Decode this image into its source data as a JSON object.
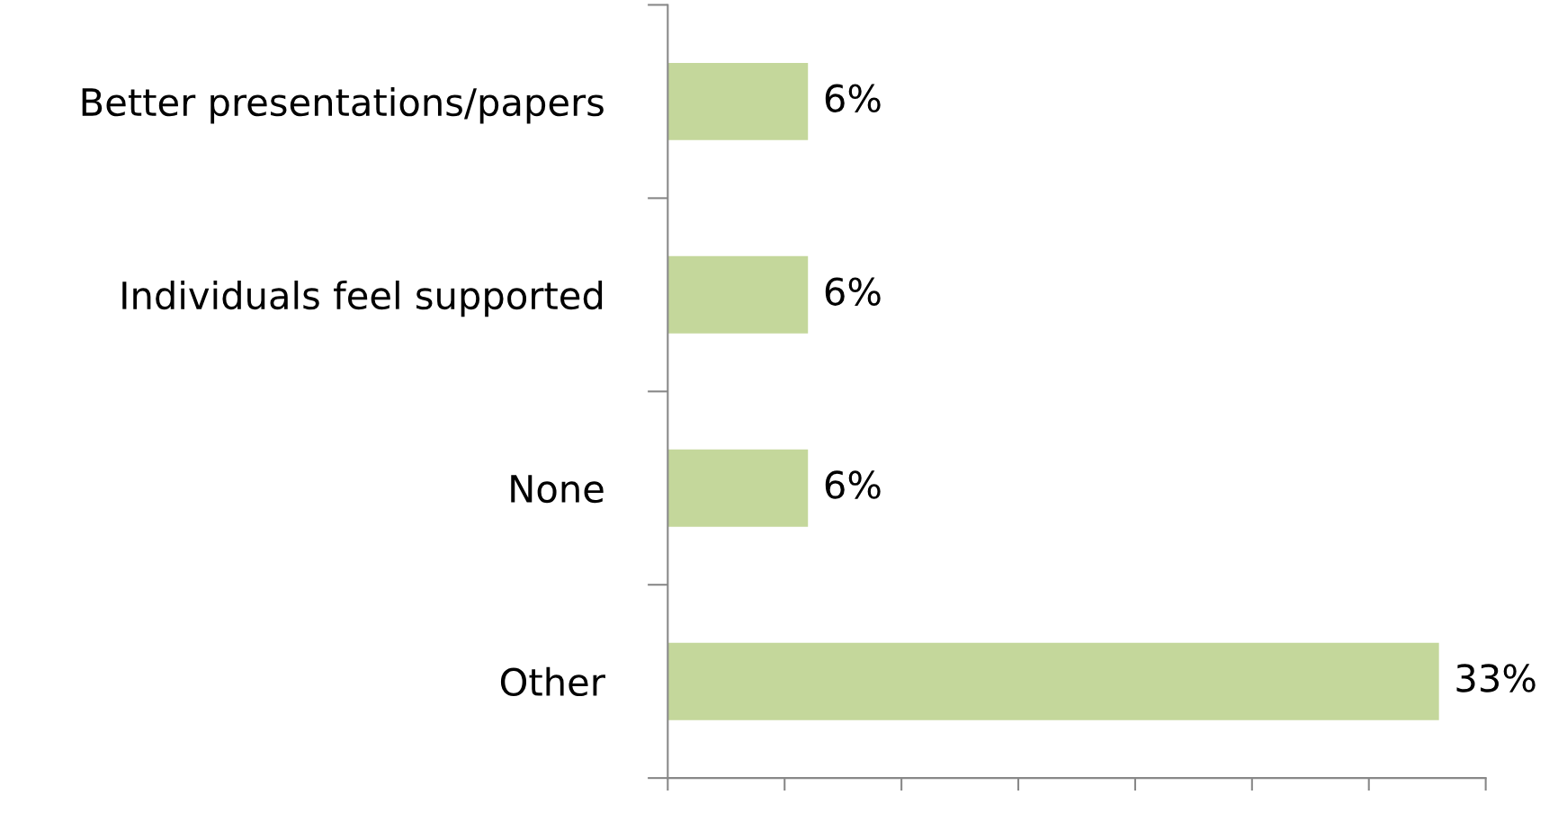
{
  "chart_data": {
    "type": "bar",
    "orientation": "horizontal",
    "categories": [
      "Better presentations/papers",
      "Individuals feel supported",
      "None",
      "Other"
    ],
    "values": [
      6,
      6,
      6,
      33
    ],
    "color": "#c4d79b",
    "data_labels": true,
    "value_labels": [
      "6%",
      "6%",
      "6%",
      "33%"
    ],
    "xlim": [
      0,
      35
    ],
    "xticks": [
      {
        "value": 0,
        "label": null
      },
      {
        "value": 5,
        "label": null
      },
      {
        "value": 10,
        "label": null
      },
      {
        "value": 15,
        "label": null
      },
      {
        "value": 20,
        "label": null
      },
      {
        "value": 25,
        "label": null
      },
      {
        "value": 30,
        "label": null
      },
      {
        "value": 35,
        "label": null
      }
    ],
    "tick_labels": "y"
  }
}
